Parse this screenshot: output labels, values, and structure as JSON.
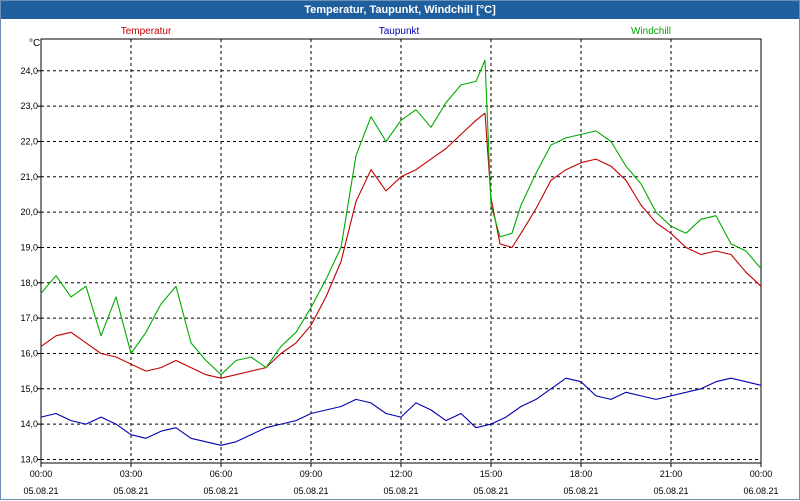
{
  "window": {
    "title": "Temperatur, Taupunkt, Windchill [°C]"
  },
  "colors": {
    "title_bar": "#1f5f9e",
    "temperatur": "#c00000",
    "taupunkt": "#0000b0",
    "windchill": "#00aa00",
    "grid": "#000000",
    "axis": "#000000"
  },
  "chart_data": {
    "type": "line",
    "title": "Temperatur, Taupunkt, Windchill [°C]",
    "ylabel": "°C",
    "xlabel": "",
    "ylim": [
      12.9,
      24.9
    ],
    "xlim": [
      0,
      24
    ],
    "grid": true,
    "legend_position": "top",
    "y_ticks": [
      13.0,
      14.0,
      15.0,
      16.0,
      17.0,
      18.0,
      19.0,
      20.0,
      21.0,
      22.0,
      23.0,
      24.0
    ],
    "y_tick_labels": [
      "13,0",
      "14,0",
      "15,0",
      "16,0",
      "17,0",
      "18,0",
      "19,0",
      "20,0",
      "21,0",
      "22,0",
      "23,0",
      "24,0"
    ],
    "x_ticks": [
      0,
      3,
      6,
      9,
      12,
      15,
      18,
      21,
      24
    ],
    "x_tick_times": [
      "00:00",
      "03:00",
      "06:00",
      "09:00",
      "12:00",
      "15:00",
      "18:00",
      "21:00",
      "00:00"
    ],
    "x_tick_dates": [
      "05.08.21",
      "05.08.21",
      "05.08.21",
      "05.08.21",
      "05.08.21",
      "05.08.21",
      "05.08.21",
      "05.08.21",
      "06.08.21"
    ],
    "series": [
      {
        "name": "Temperatur",
        "color": "#c00000",
        "x": [
          0,
          0.5,
          1.0,
          1.5,
          2.0,
          2.5,
          3.0,
          3.5,
          4.0,
          4.5,
          5.0,
          5.5,
          6.0,
          6.5,
          7.0,
          7.5,
          8.0,
          8.5,
          9.0,
          9.5,
          10.0,
          10.5,
          11.0,
          11.5,
          12.0,
          12.5,
          13.0,
          13.5,
          14.0,
          14.5,
          14.8,
          15.0,
          15.3,
          15.7,
          16.0,
          16.5,
          17.0,
          17.5,
          18.0,
          18.5,
          19.0,
          19.5,
          20.0,
          20.5,
          21.0,
          21.5,
          22.0,
          22.5,
          23.0,
          23.5,
          24.0
        ],
        "values": [
          16.2,
          16.5,
          16.6,
          16.3,
          16.0,
          15.9,
          15.7,
          15.5,
          15.6,
          15.8,
          15.6,
          15.4,
          15.3,
          15.4,
          15.5,
          15.6,
          16.0,
          16.3,
          16.8,
          17.6,
          18.6,
          20.3,
          21.2,
          20.6,
          21.0,
          21.2,
          21.5,
          21.8,
          22.2,
          22.6,
          22.8,
          20.4,
          19.1,
          19.0,
          19.4,
          20.1,
          20.9,
          21.2,
          21.4,
          21.5,
          21.3,
          20.9,
          20.2,
          19.7,
          19.4,
          19.0,
          18.8,
          18.9,
          18.8,
          18.3,
          17.9
        ]
      },
      {
        "name": "Taupunkt",
        "color": "#0000b0",
        "x": [
          0,
          0.5,
          1.0,
          1.5,
          2.0,
          2.5,
          3.0,
          3.5,
          4.0,
          4.5,
          5.0,
          5.5,
          6.0,
          6.5,
          7.0,
          7.5,
          8.0,
          8.5,
          9.0,
          9.5,
          10.0,
          10.5,
          11.0,
          11.5,
          12.0,
          12.5,
          13.0,
          13.5,
          14.0,
          14.5,
          15.0,
          15.5,
          16.0,
          16.5,
          17.0,
          17.5,
          18.0,
          18.5,
          19.0,
          19.5,
          20.0,
          20.5,
          21.0,
          21.5,
          22.0,
          22.5,
          23.0,
          23.5,
          24.0
        ],
        "values": [
          14.2,
          14.3,
          14.1,
          14.0,
          14.2,
          14.0,
          13.7,
          13.6,
          13.8,
          13.9,
          13.6,
          13.5,
          13.4,
          13.5,
          13.7,
          13.9,
          14.0,
          14.1,
          14.3,
          14.4,
          14.5,
          14.7,
          14.6,
          14.3,
          14.2,
          14.6,
          14.4,
          14.1,
          14.3,
          13.9,
          14.0,
          14.2,
          14.5,
          14.7,
          15.0,
          15.3,
          15.2,
          14.8,
          14.7,
          14.9,
          14.8,
          14.7,
          14.8,
          14.9,
          15.0,
          15.2,
          15.3,
          15.2,
          15.1
        ]
      },
      {
        "name": "Windchill",
        "color": "#00aa00",
        "x": [
          0,
          0.5,
          1.0,
          1.5,
          2.0,
          2.5,
          3.0,
          3.5,
          4.0,
          4.5,
          5.0,
          5.5,
          6.0,
          6.5,
          7.0,
          7.5,
          8.0,
          8.5,
          9.0,
          9.5,
          10.0,
          10.5,
          11.0,
          11.5,
          12.0,
          12.5,
          13.0,
          13.5,
          14.0,
          14.5,
          14.8,
          15.0,
          15.3,
          15.7,
          16.0,
          16.5,
          17.0,
          17.5,
          18.0,
          18.5,
          19.0,
          19.5,
          20.0,
          20.5,
          21.0,
          21.5,
          22.0,
          22.5,
          23.0,
          23.5,
          24.0
        ],
        "values": [
          17.7,
          18.2,
          17.6,
          17.9,
          16.5,
          17.6,
          16.0,
          16.6,
          17.4,
          17.9,
          16.3,
          15.8,
          15.4,
          15.8,
          15.9,
          15.6,
          16.2,
          16.6,
          17.3,
          18.1,
          19.0,
          21.6,
          22.7,
          22.0,
          22.6,
          22.9,
          22.4,
          23.1,
          23.6,
          23.7,
          24.3,
          20.2,
          19.3,
          19.4,
          20.2,
          21.1,
          21.9,
          22.1,
          22.2,
          22.3,
          22.0,
          21.3,
          20.8,
          20.0,
          19.6,
          19.4,
          19.8,
          19.9,
          19.1,
          18.9,
          18.4
        ]
      }
    ]
  }
}
